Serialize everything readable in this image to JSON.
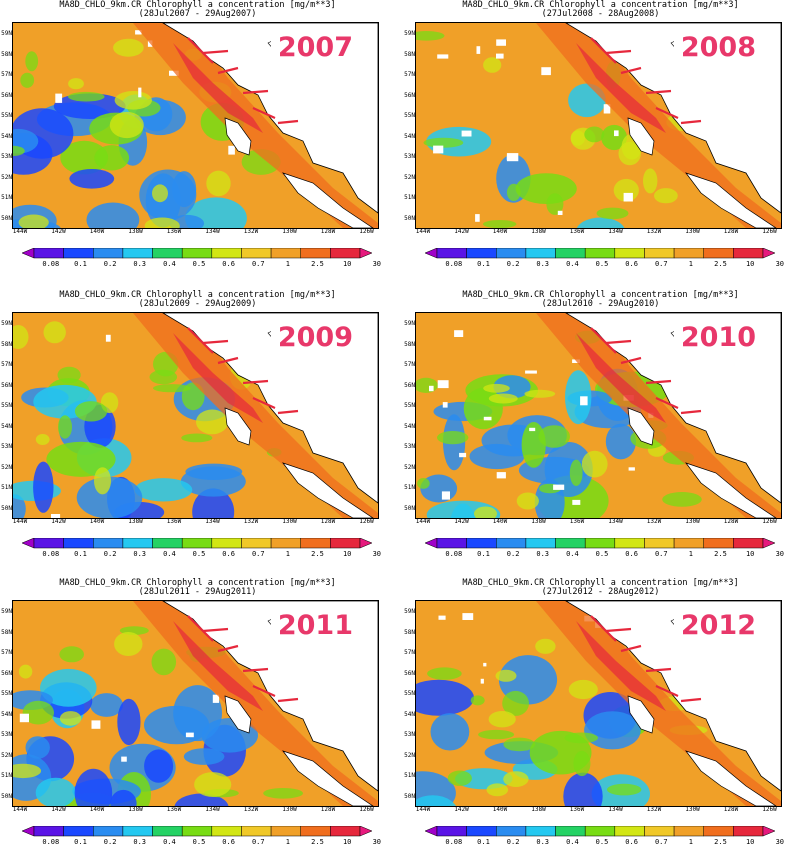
{
  "lat_labels": [
    "59N",
    "58N",
    "57N",
    "56N",
    "55N",
    "54N",
    "53N",
    "52N",
    "51N",
    "50N"
  ],
  "lon_labels": [
    "144W",
    "142W",
    "140W",
    "138W",
    "136W",
    "134W",
    "132W",
    "130W",
    "128W",
    "126W"
  ],
  "colorbar_labels": [
    "0.08",
    "0.1",
    "0.2",
    "0.3",
    "0.4",
    "0.5",
    "0.6",
    "0.7",
    "1",
    "2.5",
    "10",
    "30"
  ],
  "colors": {
    "colorbar": [
      "#a000c8",
      "#5a14e6",
      "#1a48ff",
      "#2a8cf0",
      "#24c8f0",
      "#24d264",
      "#78dc14",
      "#d2e614",
      "#f0c828",
      "#f0a028",
      "#f06e1e",
      "#e6283c",
      "#e6197d"
    ],
    "ocean_low": "#2a8cf0",
    "ocean_mid": "#f0a028",
    "coastal_high": "#e6283c",
    "land": "#ffffff"
  },
  "panels": [
    {
      "year": "2007",
      "title": "MA8D_CHLO_9km.CR Chlorophyll a concentration [mg/m**3]",
      "subtitle": "(28Jul2007 - 29Aug2007)"
    },
    {
      "year": "2008",
      "title": "MA8D_CHLO_9km.CR Chlorophyll a concentration [mg/m**3]",
      "subtitle": "(27Jul2008 - 28Aug2008)"
    },
    {
      "year": "2009",
      "title": "MA8D_CHLO_9km.CR Chlorophyll a concentration [mg/m**3]",
      "subtitle": "(28Jul2009 - 29Aug2009)"
    },
    {
      "year": "2010",
      "title": "MA8D_CHLO_9km.CR Chlorophyll a concentration [mg/m**3]",
      "subtitle": "(28Jul2010 - 29Aug2010)"
    },
    {
      "year": "2011",
      "title": "MA8D_CHLO_9km.CR Chlorophyll a concentration [mg/m**3]",
      "subtitle": "(28Jul2011 - 29Aug2011)"
    },
    {
      "year": "2012",
      "title": "MA8D_CHLO_9km.CR Chlorophyll a concentration [mg/m**3]",
      "subtitle": "(27Jul2012 - 28Aug2012)"
    }
  ]
}
